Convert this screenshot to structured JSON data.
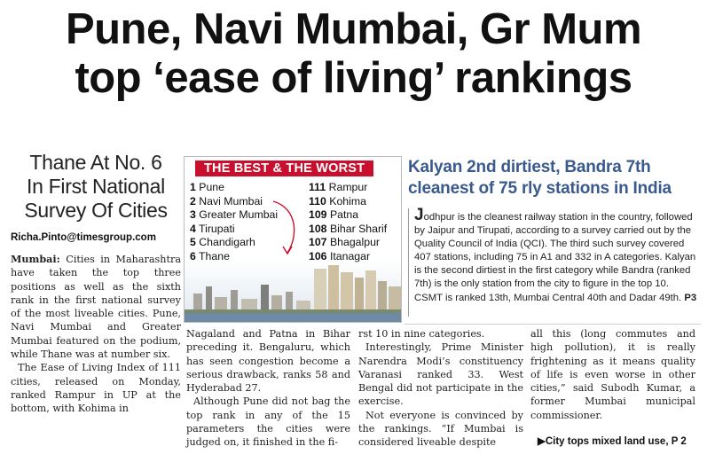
{
  "headline": {
    "line1": "Pune, Navi Mumbai, Gr Mum",
    "line2": "top ‘ease of living’ rankings"
  },
  "left": {
    "subhead_lines": [
      "Thane At No. 6",
      "In First National",
      "Survey Of Cities"
    ],
    "byline": "Richa.Pinto@timesgroup.com",
    "dateline": "Mumbai:",
    "para1_rest": "Cities in Maharashtra have taken the top three positions as well as the sixth rank in the first national survey of the most liveable cities. Pune, Navi Mumbai and Greater Mumbai featured on the podium, while Thane was at number six.",
    "para2": "The Ease of Living Index of 111 cities, released on Monday, ranked Rampur in UP at the bottom, with Kohima in"
  },
  "infobox": {
    "title": "THE BEST & THE WORST",
    "best": [
      {
        "rank": "1",
        "city": "Pune"
      },
      {
        "rank": "2",
        "city": "Navi Mumbai"
      },
      {
        "rank": "3",
        "city": "Greater Mumbai"
      },
      {
        "rank": "4",
        "city": "Tirupati"
      },
      {
        "rank": "5",
        "city": "Chandigarh"
      },
      {
        "rank": "6",
        "city": "Thane"
      }
    ],
    "worst": [
      {
        "rank": "111",
        "city": "Rampur"
      },
      {
        "rank": "110",
        "city": "Kohima"
      },
      {
        "rank": "109",
        "city": "Patna"
      },
      {
        "rank": "108",
        "city": "Bihar Sharif"
      },
      {
        "rank": "107",
        "city": "Bhagalpur"
      },
      {
        "rank": "106",
        "city": "Itanagar"
      }
    ],
    "colors": {
      "title_bg": "#c8102e",
      "title_fg": "#ffffff",
      "arrow": "#c8102e"
    }
  },
  "right": {
    "kicker_line1": "Kalyan 2nd dirtiest, Bandra 7th",
    "kicker_line2": "cleanest of 75 rly stations in India",
    "dropcap": "J",
    "story": "odhpur is the cleanest railway station in the country, followed by Jaipur and Tirupati, according to a survey carried out by the Quality Council of India (QCI). The third such survey covered 407 stations, including 75 in A1 and 332 in A categories. Kalyan is the second dirtiest in the first category while Bandra (ranked 7th) is the only station from the city to figure in the top 10. CSMT is ranked 13th, Mumbai Central 40th and Dadar 49th.",
    "page_ref": "P3",
    "accent_color": "#3a5a8c"
  },
  "lower": {
    "col1_p1": "Nagaland and Patna in Bihar preceding it. Bengaluru, which has seen congestion become a serious drawback, ranks 58 and Hyderabad 27.",
    "col1_p2": "Although Pune did not bag the top rank in any of the 15 parameters the cities were judged on, it finished in the fi-",
    "col2_p1": "rst 10 in nine categories.",
    "col2_p2": "Interestingly, Prime Minister Narendra Modi’s constituency Varanasi ranked 33. West Bengal did not participate in the exercise.",
    "col2_p3": "Not everyone is convinced by the rankings. “If Mumbai is considered liveable despite",
    "col3_p1": "all this (long commutes and high pollution), it is really frightening as it means quality of life is even worse in other cities,” said Subodh Kumar, a former Mumbai municipal commissioner.",
    "crossref": "▶City tops mixed land use, P 2"
  }
}
